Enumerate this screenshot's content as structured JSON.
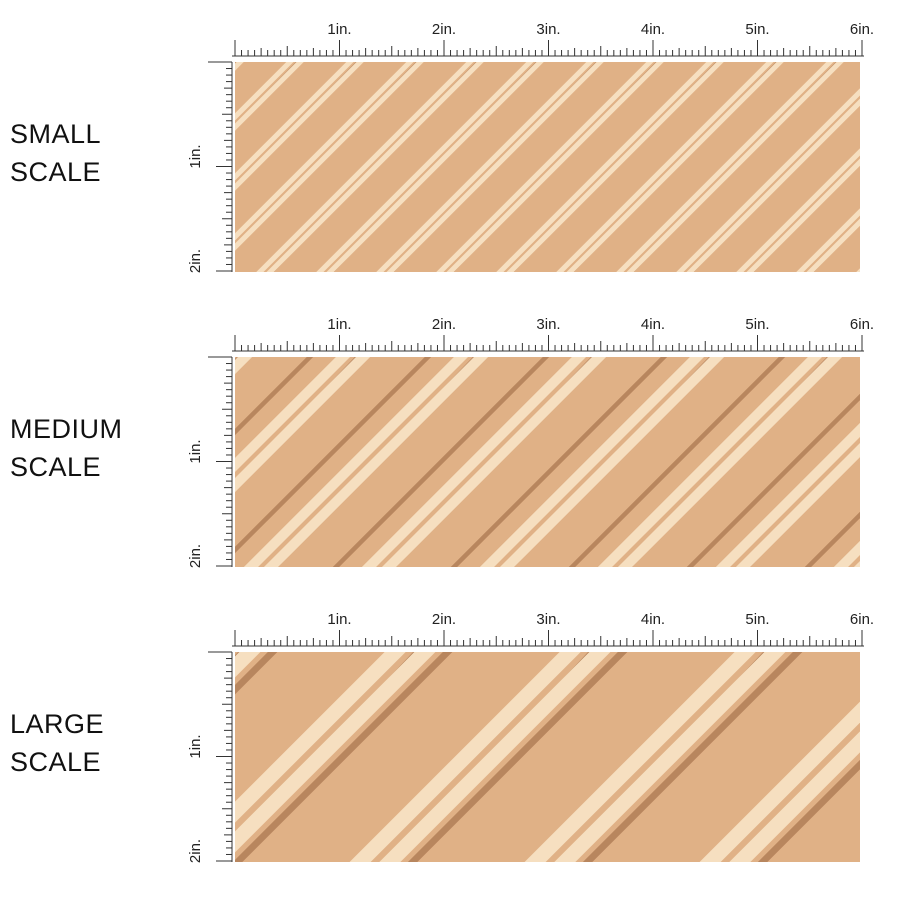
{
  "ruler": {
    "h_labels": [
      "1in.",
      "2in.",
      "3in.",
      "4in.",
      "5in.",
      "6in."
    ],
    "v_labels": [
      "1in.",
      "2in."
    ]
  },
  "colors": {
    "fabric_base": "#e0b186",
    "lattice_light": "#f6dfc0",
    "lattice_shadow": "#b8865e",
    "ruler_ink": "#333333"
  },
  "panels": [
    {
      "id": "small",
      "label_line1": "SMALL",
      "label_line2": "SCALE"
    },
    {
      "id": "medium",
      "label_line1": "MEDIUM",
      "label_line2": "SCALE"
    },
    {
      "id": "large",
      "label_line1": "LARGE",
      "label_line2": "SCALE"
    }
  ]
}
